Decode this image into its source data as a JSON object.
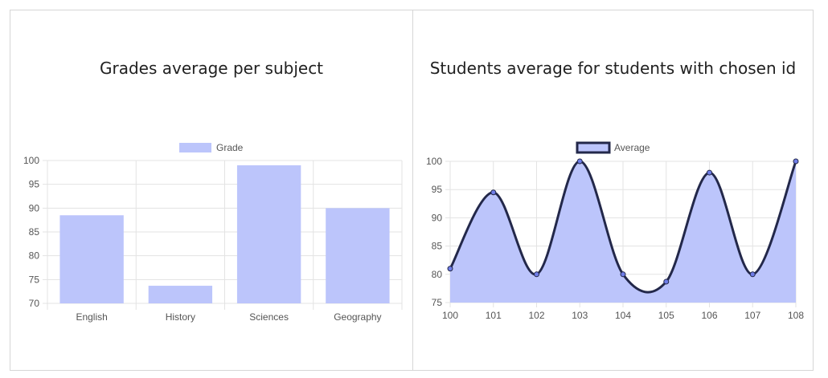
{
  "colors": {
    "bar_fill": "#bcc5fb",
    "area_fill": "#bcc5fb",
    "line": "#23284a",
    "grid": "#e3e3e3",
    "axis_text": "#555555",
    "title": "#212121"
  },
  "chart_data": [
    {
      "type": "bar",
      "title": "Grades average per subject",
      "legend": [
        "Grade"
      ],
      "legend_position": "top",
      "categories": [
        "English",
        "History",
        "Sciences",
        "Geography"
      ],
      "series": [
        {
          "name": "Grade",
          "values": [
            88.5,
            73.7,
            99,
            90
          ]
        }
      ],
      "ylim": [
        70,
        100
      ],
      "yticks": [
        "100",
        "95",
        "90",
        "85",
        "80",
        "75",
        "70"
      ],
      "grid": true
    },
    {
      "type": "area",
      "title": "Students average for students with chosen id",
      "legend": [
        "Average"
      ],
      "legend_position": "top",
      "x": [
        "100",
        "101",
        "102",
        "103",
        "104",
        "105",
        "106",
        "107",
        "108"
      ],
      "series": [
        {
          "name": "Average",
          "values": [
            81,
            94.5,
            80,
            100,
            80,
            78.7,
            98,
            80,
            100
          ]
        }
      ],
      "ylim": [
        75,
        100
      ],
      "yticks": [
        "100",
        "95",
        "90",
        "85",
        "80",
        "75"
      ],
      "grid": true
    }
  ]
}
